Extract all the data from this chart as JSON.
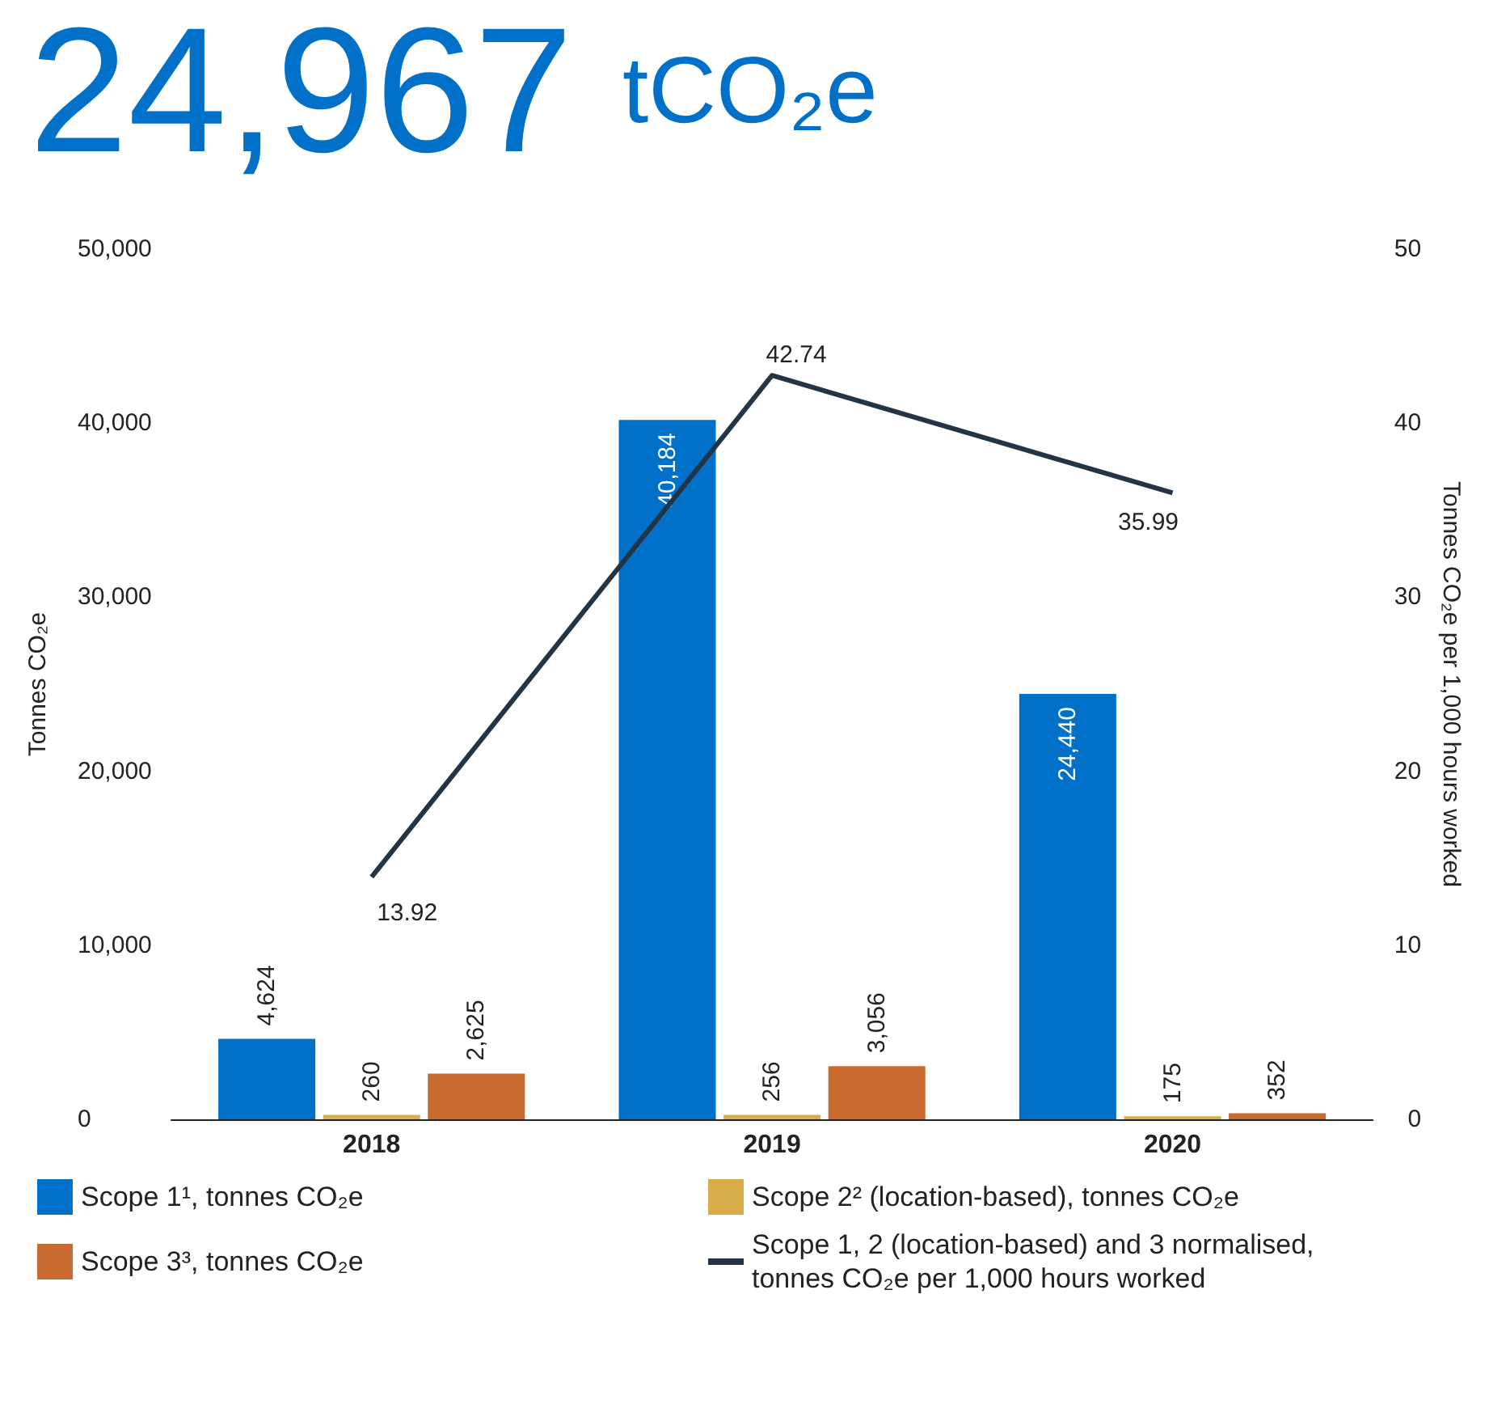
{
  "chart_data": {
    "type": "bar",
    "title": "24,967 tCO₂e",
    "ylabel": "Tonnes CO₂e",
    "y2label": "Tonnes CO₂e per 1,000 hours worked",
    "categories": [
      "2018",
      "2019",
      "2020"
    ],
    "series": [
      {
        "name": "Scope 1¹, tonnes CO₂e",
        "color": "#0070c8",
        "values": [
          4624,
          40184,
          24440
        ],
        "value_labels": [
          "4,624",
          "40,184",
          "24,440"
        ]
      },
      {
        "name": "Scope 2² (location-based), tonnes CO₂e",
        "color": "#d9ac4a",
        "values": [
          260,
          256,
          175
        ],
        "value_labels": [
          "260",
          "256",
          "175"
        ]
      },
      {
        "name": "Scope 3³, tonnes CO₂e",
        "color": "#c8692e",
        "values": [
          2625,
          3056,
          352
        ],
        "value_labels": [
          "2,625",
          "3,056",
          "352"
        ]
      },
      {
        "name": "Scope 1, 2 (location-based) and 3 normalised, tonnes CO₂e per 1,000 hours worked",
        "type": "line",
        "axis": "y2",
        "color": "#243447",
        "values": [
          13.92,
          42.74,
          35.99
        ],
        "value_labels": [
          "13.92",
          "42.74",
          "35.99"
        ]
      }
    ],
    "ylim": [
      0,
      50000
    ],
    "yticks": [
      0,
      {
        "value": 10000,
        "label": "10,000"
      },
      {
        "value": 20000,
        "label": "20,000"
      },
      {
        "value": 30000,
        "label": "30,000"
      },
      {
        "value": 40000,
        "label": "40,000"
      },
      {
        "value": 50000,
        "label": "50,000"
      }
    ],
    "y2lim": [
      0,
      50
    ],
    "y2ticks": [
      0,
      10,
      20,
      30,
      40,
      50
    ],
    "grid": false,
    "legend": "bottom"
  }
}
